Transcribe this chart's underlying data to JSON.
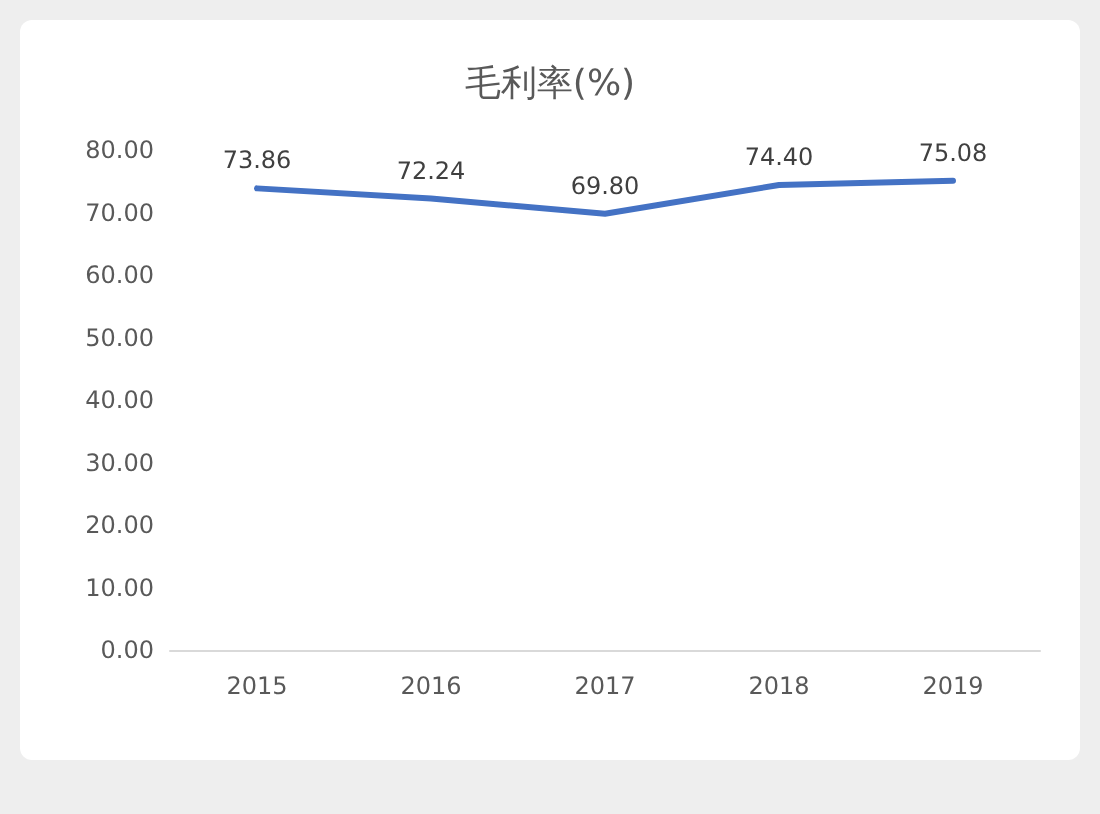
{
  "chart_data": {
    "type": "line",
    "title": "毛利率(%)",
    "categories": [
      "2015",
      "2016",
      "2017",
      "2018",
      "2019"
    ],
    "series": [
      {
        "color": "#4472c4",
        "values": [
          73.86,
          72.24,
          69.8,
          74.4,
          75.08
        ],
        "value_labels": [
          "73.86",
          "72.24",
          "69.80",
          "74.40",
          "75.08"
        ]
      }
    ],
    "ylim": [
      0,
      80
    ],
    "yticks": [
      {
        "value": 0,
        "label": "0.00"
      },
      {
        "value": 10,
        "label": "10.00"
      },
      {
        "value": 20,
        "label": "20.00"
      },
      {
        "value": 30,
        "label": "30.00"
      },
      {
        "value": 40,
        "label": "40.00"
      },
      {
        "value": 50,
        "label": "50.00"
      },
      {
        "value": 60,
        "label": "60.00"
      },
      {
        "value": 70,
        "label": "70.00"
      },
      {
        "value": 80,
        "label": "80.00"
      }
    ],
    "grid": false,
    "marker": "none",
    "line_style": "solid"
  }
}
